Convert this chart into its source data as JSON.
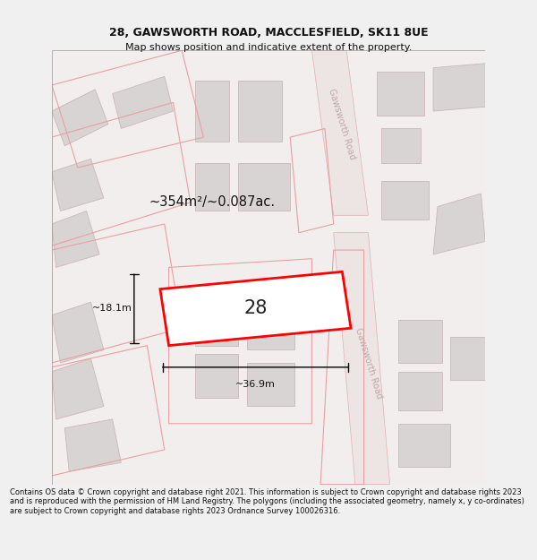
{
  "title_line1": "28, GAWSWORTH ROAD, MACCLESFIELD, SK11 8UE",
  "title_line2": "Map shows position and indicative extent of the property.",
  "footer_text": "Contains OS data © Crown copyright and database right 2021. This information is subject to Crown copyright and database rights 2023 and is reproduced with the permission of HM Land Registry. The polygons (including the associated geometry, namely x, y co-ordinates) are subject to Crown copyright and database rights 2023 Ordnance Survey 100026316.",
  "bg_color": "#f2eeee",
  "map_bg": "#f2eeee",
  "page_bg": "#f0f0f0",
  "building_fill": "#d8d4d4",
  "building_edge": "#ccb8b8",
  "highlight_fill": "#ffffff",
  "highlight_edge": "#ff0000",
  "highlight_lw": 2.0,
  "boundary_color": "#e8a0a0",
  "road_line_color": "#e0b0b0",
  "area_text": "~354m²/~0.087ac.",
  "width_text": "~36.9m",
  "height_text": "~18.1m",
  "plot_number": "28",
  "road_label": "Gawsworth Road",
  "road_text_color": "#c0a8a8",
  "title_fontsize": 9,
  "subtitle_fontsize": 8,
  "footer_fontsize": 6.0
}
